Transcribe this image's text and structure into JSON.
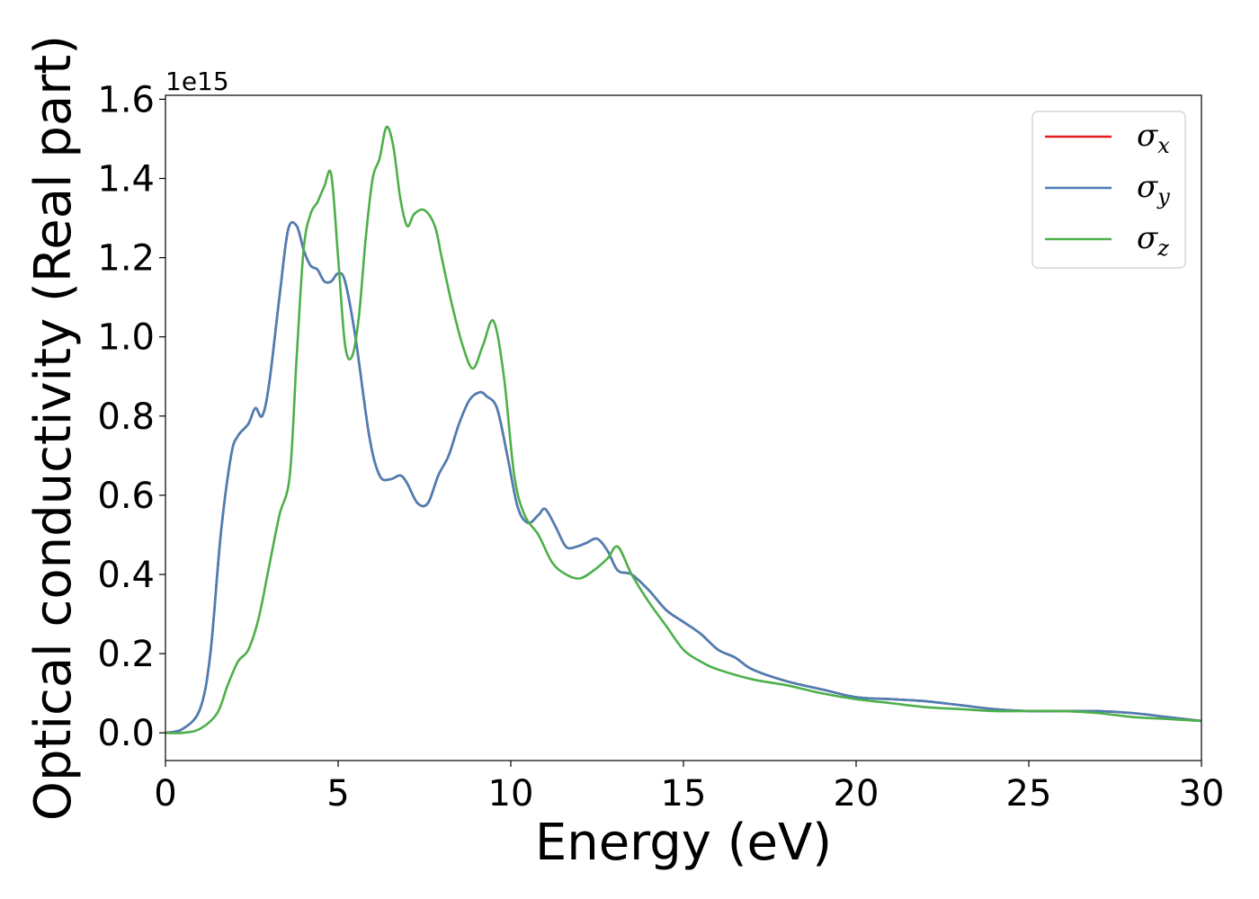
{
  "chart_data": {
    "type": "line",
    "title": "",
    "xlabel": "Energy (eV)",
    "ylabel": "Optical conductivity (Real part)",
    "y_offset_label": "1e15",
    "xlim": [
      0,
      30
    ],
    "ylim": [
      -0.07,
      1.61
    ],
    "xticks": [
      0,
      5,
      10,
      15,
      20,
      25,
      30
    ],
    "xtick_labels": [
      "0",
      "5",
      "10",
      "15",
      "20",
      "25",
      "30"
    ],
    "yticks": [
      0.0,
      0.2,
      0.4,
      0.6,
      0.8,
      1.0,
      1.2,
      1.4,
      1.6
    ],
    "ytick_labels": [
      "0.0",
      "0.2",
      "0.4",
      "0.6",
      "0.8",
      "1.0",
      "1.2",
      "1.4",
      "1.6"
    ],
    "grid": false,
    "legend_position": "top-right",
    "series": [
      {
        "name": "σ",
        "sub": "x",
        "color": "#e41a1c",
        "x": [
          0,
          0.5,
          1.0,
          1.3,
          1.6,
          1.9,
          2.1,
          2.4,
          2.6,
          2.8,
          3.0,
          3.3,
          3.55,
          3.8,
          4.0,
          4.2,
          4.4,
          4.6,
          4.8,
          5.0,
          5.2,
          5.5,
          5.9,
          6.2,
          6.5,
          6.8,
          7.0,
          7.3,
          7.6,
          7.9,
          8.2,
          8.5,
          8.8,
          9.1,
          9.3,
          9.6,
          9.9,
          10.2,
          10.5,
          10.8,
          11.0,
          11.3,
          11.6,
          11.9,
          12.2,
          12.5,
          12.8,
          13.1,
          13.5,
          14.0,
          14.5,
          15.0,
          15.5,
          16.0,
          16.5,
          17.0,
          18.0,
          19.0,
          20.0,
          21.0,
          22.0,
          23.0,
          24.0,
          25.0,
          26.0,
          27.0,
          28.0,
          29.0,
          30.0
        ],
        "y": [
          0.0,
          0.01,
          0.06,
          0.2,
          0.5,
          0.7,
          0.75,
          0.78,
          0.82,
          0.8,
          0.88,
          1.1,
          1.27,
          1.28,
          1.22,
          1.18,
          1.17,
          1.14,
          1.14,
          1.16,
          1.14,
          1.0,
          0.75,
          0.65,
          0.64,
          0.65,
          0.63,
          0.58,
          0.58,
          0.65,
          0.7,
          0.78,
          0.84,
          0.86,
          0.85,
          0.82,
          0.7,
          0.57,
          0.53,
          0.55,
          0.565,
          0.52,
          0.47,
          0.47,
          0.48,
          0.49,
          0.46,
          0.41,
          0.4,
          0.36,
          0.31,
          0.28,
          0.25,
          0.21,
          0.19,
          0.16,
          0.13,
          0.11,
          0.09,
          0.085,
          0.08,
          0.07,
          0.06,
          0.055,
          0.055,
          0.055,
          0.05,
          0.04,
          0.03
        ]
      },
      {
        "name": "σ",
        "sub": "y",
        "color": "#4a7fb5",
        "x": [
          0,
          0.5,
          1.0,
          1.3,
          1.6,
          1.9,
          2.1,
          2.4,
          2.6,
          2.8,
          3.0,
          3.3,
          3.55,
          3.8,
          4.0,
          4.2,
          4.4,
          4.6,
          4.8,
          5.0,
          5.2,
          5.5,
          5.9,
          6.2,
          6.5,
          6.8,
          7.0,
          7.3,
          7.6,
          7.9,
          8.2,
          8.5,
          8.8,
          9.1,
          9.3,
          9.6,
          9.9,
          10.2,
          10.5,
          10.8,
          11.0,
          11.3,
          11.6,
          11.9,
          12.2,
          12.5,
          12.8,
          13.1,
          13.5,
          14.0,
          14.5,
          15.0,
          15.5,
          16.0,
          16.5,
          17.0,
          18.0,
          19.0,
          20.0,
          21.0,
          22.0,
          23.0,
          24.0,
          25.0,
          26.0,
          27.0,
          28.0,
          29.0,
          30.0
        ],
        "y": [
          0.0,
          0.01,
          0.06,
          0.2,
          0.5,
          0.7,
          0.75,
          0.78,
          0.82,
          0.8,
          0.88,
          1.1,
          1.27,
          1.28,
          1.22,
          1.18,
          1.17,
          1.14,
          1.14,
          1.16,
          1.14,
          1.0,
          0.75,
          0.65,
          0.64,
          0.65,
          0.63,
          0.58,
          0.58,
          0.65,
          0.7,
          0.78,
          0.84,
          0.86,
          0.85,
          0.82,
          0.7,
          0.57,
          0.53,
          0.55,
          0.565,
          0.52,
          0.47,
          0.47,
          0.48,
          0.49,
          0.46,
          0.41,
          0.4,
          0.36,
          0.31,
          0.28,
          0.25,
          0.21,
          0.19,
          0.16,
          0.13,
          0.11,
          0.09,
          0.085,
          0.08,
          0.07,
          0.06,
          0.055,
          0.055,
          0.055,
          0.05,
          0.04,
          0.03
        ]
      },
      {
        "name": "σ",
        "sub": "z",
        "color": "#4daf4a",
        "x": [
          0,
          0.5,
          1.0,
          1.5,
          1.8,
          2.1,
          2.4,
          2.7,
          3.0,
          3.3,
          3.6,
          3.8,
          4.0,
          4.2,
          4.4,
          4.6,
          4.8,
          5.0,
          5.2,
          5.4,
          5.6,
          5.8,
          6.0,
          6.2,
          6.4,
          6.6,
          6.8,
          7.0,
          7.2,
          7.5,
          7.8,
          8.0,
          8.3,
          8.6,
          8.9,
          9.2,
          9.5,
          9.8,
          10.1,
          10.4,
          10.8,
          11.2,
          11.6,
          12.0,
          12.4,
          12.8,
          13.1,
          13.5,
          14.0,
          14.5,
          15.0,
          15.5,
          16.0,
          17.0,
          18.0,
          19.0,
          20.0,
          21.0,
          22.0,
          23.0,
          24.0,
          25.0,
          26.0,
          27.0,
          28.0,
          29.0,
          30.0
        ],
        "y": [
          0.0,
          0.0,
          0.01,
          0.05,
          0.12,
          0.18,
          0.21,
          0.29,
          0.42,
          0.55,
          0.65,
          0.95,
          1.22,
          1.31,
          1.34,
          1.38,
          1.41,
          1.2,
          0.98,
          0.95,
          1.05,
          1.25,
          1.4,
          1.45,
          1.53,
          1.48,
          1.35,
          1.28,
          1.31,
          1.32,
          1.28,
          1.2,
          1.08,
          0.98,
          0.92,
          0.98,
          1.04,
          0.9,
          0.65,
          0.55,
          0.5,
          0.43,
          0.4,
          0.39,
          0.41,
          0.44,
          0.47,
          0.4,
          0.33,
          0.27,
          0.21,
          0.18,
          0.16,
          0.135,
          0.12,
          0.1,
          0.085,
          0.075,
          0.065,
          0.06,
          0.055,
          0.055,
          0.055,
          0.05,
          0.04,
          0.035,
          0.03
        ]
      }
    ]
  }
}
